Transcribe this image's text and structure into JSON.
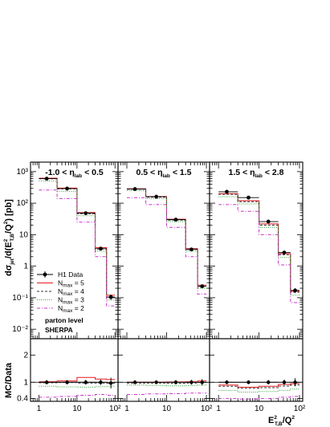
{
  "chart_data": {
    "type": "line",
    "ylabel_main": "dσjet/d(E²T,B/Q²) [pb]",
    "ylabel_ratio": "MC/Data",
    "xlabel": "E²T,B/Q²",
    "x_scale": "log",
    "y_scale_main": "log",
    "ylim_main": [
      0.005,
      2000
    ],
    "ylim_ratio": [
      0.3,
      2.6
    ],
    "xlim": [
      0.6,
      120
    ],
    "x_bin_edges": [
      1,
      3,
      10,
      30,
      60,
      100
    ],
    "x_tick_labels": [
      "1",
      "10",
      "10²"
    ],
    "y_tick_labels_main": [
      "10⁻²",
      "10⁻¹",
      "1",
      "10",
      "10²",
      "10³"
    ],
    "y_tick_labels_ratio": [
      "0.4",
      "1",
      "2"
    ],
    "annotations": [
      "parton level",
      "SHERPA"
    ],
    "annotation_colors": [
      "#cc0000",
      "#e0e0e0"
    ],
    "legend": {
      "placement": "lower-left of first panel",
      "entries": [
        {
          "label": "H1 Data",
          "label_main": "H1 Data",
          "label_sub": "",
          "label_rest": "",
          "style": "points",
          "color": "#000000"
        },
        {
          "label": "Nmax = 5",
          "label_main": "N",
          "label_sub": "max",
          "label_rest": " = 5",
          "style": "solid",
          "color": "#e41a1c"
        },
        {
          "label": "Nmax = 4",
          "label_main": "N",
          "label_sub": "max",
          "label_rest": " = 4",
          "style": "dashed",
          "color": "#333333"
        },
        {
          "label": "Nmax = 3",
          "label_main": "N",
          "label_sub": "max",
          "label_rest": " = 3",
          "style": "dotted",
          "color": "#2ca02c"
        },
        {
          "label": "Nmax = 2",
          "label_main": "N",
          "label_sub": "max",
          "label_rest": " = 2",
          "style": "dashdot",
          "color": "#cc33cc"
        }
      ]
    },
    "panels": [
      {
        "title": "-1.0 < ηlab < 0.5",
        "title_pre": "-1.0 < η",
        "title_sub": "lab",
        "title_post": " < 0.5",
        "data_points": [
          {
            "x": 1.6,
            "y": 600,
            "err": 60
          },
          {
            "x": 5.5,
            "y": 290,
            "err": 25
          },
          {
            "x": 17,
            "y": 48,
            "err": 5
          },
          {
            "x": 42,
            "y": 3.6,
            "err": 0.4
          },
          {
            "x": 78,
            "y": 0.105,
            "err": 0.02
          }
        ],
        "series": [
          {
            "name": "Nmax = 5",
            "values": [
              620,
              300,
              50,
              3.9,
              0.12
            ]
          },
          {
            "name": "Nmax = 4",
            "values": [
              590,
              285,
              46,
              3.5,
              0.1
            ]
          },
          {
            "name": "Nmax = 3",
            "values": [
              500,
              240,
              40,
              3.0,
              0.085
            ]
          },
          {
            "name": "Nmax = 2",
            "values": [
              260,
              140,
              25,
              2.0,
              0.055
            ]
          }
        ],
        "ratio_points": [
          {
            "x": 1.6,
            "y": 1.0,
            "err": 0.08
          },
          {
            "x": 5.5,
            "y": 1.0,
            "err": 0.08
          },
          {
            "x": 17,
            "y": 1.0,
            "err": 0.09
          },
          {
            "x": 42,
            "y": 1.0,
            "err": 0.1
          },
          {
            "x": 78,
            "y": 0.97,
            "err": 0.2
          }
        ],
        "ratio_series": [
          {
            "name": "Nmax = 5",
            "values": [
              1.02,
              1.05,
              1.18,
              1.12,
              1.1
            ]
          },
          {
            "name": "Nmax = 4",
            "values": [
              0.98,
              0.99,
              0.97,
              0.97,
              1.0
            ]
          },
          {
            "name": "Nmax = 3",
            "values": [
              0.85,
              0.83,
              0.82,
              0.84,
              0.85
            ]
          },
          {
            "name": "Nmax = 2",
            "values": [
              0.45,
              0.48,
              0.52,
              0.55,
              0.52
            ]
          }
        ]
      },
      {
        "title": "0.5 < ηlab < 1.5",
        "title_pre": "0.5 < η",
        "title_sub": "lab",
        "title_post": " < 1.5",
        "data_points": [
          {
            "x": 1.6,
            "y": 280,
            "err": 25
          },
          {
            "x": 5.5,
            "y": 160,
            "err": 14
          },
          {
            "x": 17,
            "y": 30,
            "err": 3
          },
          {
            "x": 42,
            "y": 3.4,
            "err": 0.35
          },
          {
            "x": 78,
            "y": 0.23,
            "err": 0.03
          }
        ],
        "series": [
          {
            "name": "Nmax = 5",
            "values": [
              285,
              162,
              31,
              3.6,
              0.25
            ]
          },
          {
            "name": "Nmax = 4",
            "values": [
              278,
              155,
              29,
              3.4,
              0.23
            ]
          },
          {
            "name": "Nmax = 3",
            "values": [
              250,
              140,
              26,
              3.0,
              0.2
            ]
          },
          {
            "name": "Nmax = 2",
            "values": [
              150,
              90,
              17,
              2.0,
              0.13
            ]
          }
        ],
        "ratio_points": [
          {
            "x": 1.6,
            "y": 1.0,
            "err": 0.07
          },
          {
            "x": 5.5,
            "y": 1.0,
            "err": 0.07
          },
          {
            "x": 17,
            "y": 1.0,
            "err": 0.08
          },
          {
            "x": 42,
            "y": 1.0,
            "err": 0.09
          },
          {
            "x": 78,
            "y": 1.0,
            "err": 0.12
          }
        ],
        "ratio_series": [
          {
            "name": "Nmax = 5",
            "values": [
              1.0,
              1.0,
              1.01,
              1.02,
              1.05
            ]
          },
          {
            "name": "Nmax = 4",
            "values": [
              0.97,
              0.97,
              0.96,
              0.97,
              0.99
            ]
          },
          {
            "name": "Nmax = 3",
            "values": [
              0.9,
              0.88,
              0.87,
              0.88,
              0.9
            ]
          },
          {
            "name": "Nmax = 2",
            "values": [
              0.55,
              0.57,
              0.58,
              0.6,
              0.6
            ]
          }
        ]
      },
      {
        "title": "1.5 < ηlab < 2.8",
        "title_pre": "1.5 < η",
        "title_sub": "lab",
        "title_post": " < 2.8",
        "data_points": [
          {
            "x": 1.6,
            "y": 230,
            "err": 20
          },
          {
            "x": 5.5,
            "y": 150,
            "err": 13
          },
          {
            "x": 17,
            "y": 26,
            "err": 2.6
          },
          {
            "x": 42,
            "y": 2.7,
            "err": 0.3
          },
          {
            "x": 78,
            "y": 0.17,
            "err": 0.03
          }
        ],
        "series": [
          {
            "name": "Nmax = 5",
            "values": [
              200,
              120,
              22,
              2.5,
              0.16
            ]
          },
          {
            "name": "Nmax = 4",
            "values": [
              190,
              112,
              20,
              2.3,
              0.15
            ]
          },
          {
            "name": "Nmax = 3",
            "values": [
              160,
              95,
              17,
              1.9,
              0.12
            ]
          },
          {
            "name": "Nmax = 2",
            "values": [
              90,
              55,
              10,
              1.1,
              0.07
            ]
          }
        ],
        "ratio_points": [
          {
            "x": 1.6,
            "y": 1.0,
            "err": 0.07
          },
          {
            "x": 5.5,
            "y": 1.0,
            "err": 0.07
          },
          {
            "x": 17,
            "y": 1.0,
            "err": 0.08
          },
          {
            "x": 42,
            "y": 1.0,
            "err": 0.1
          },
          {
            "x": 78,
            "y": 1.0,
            "err": 0.15
          }
        ],
        "ratio_series": [
          {
            "name": "Nmax = 5",
            "values": [
              0.9,
              0.82,
              0.85,
              0.92,
              0.95
            ]
          },
          {
            "name": "Nmax = 4",
            "values": [
              0.85,
              0.78,
              0.8,
              0.86,
              0.9
            ]
          },
          {
            "name": "Nmax = 3",
            "values": [
              0.7,
              0.64,
              0.66,
              0.7,
              0.75
            ]
          },
          {
            "name": "Nmax = 2",
            "values": [
              0.4,
              0.38,
              0.4,
              0.45,
              0.48
            ]
          }
        ]
      }
    ]
  }
}
